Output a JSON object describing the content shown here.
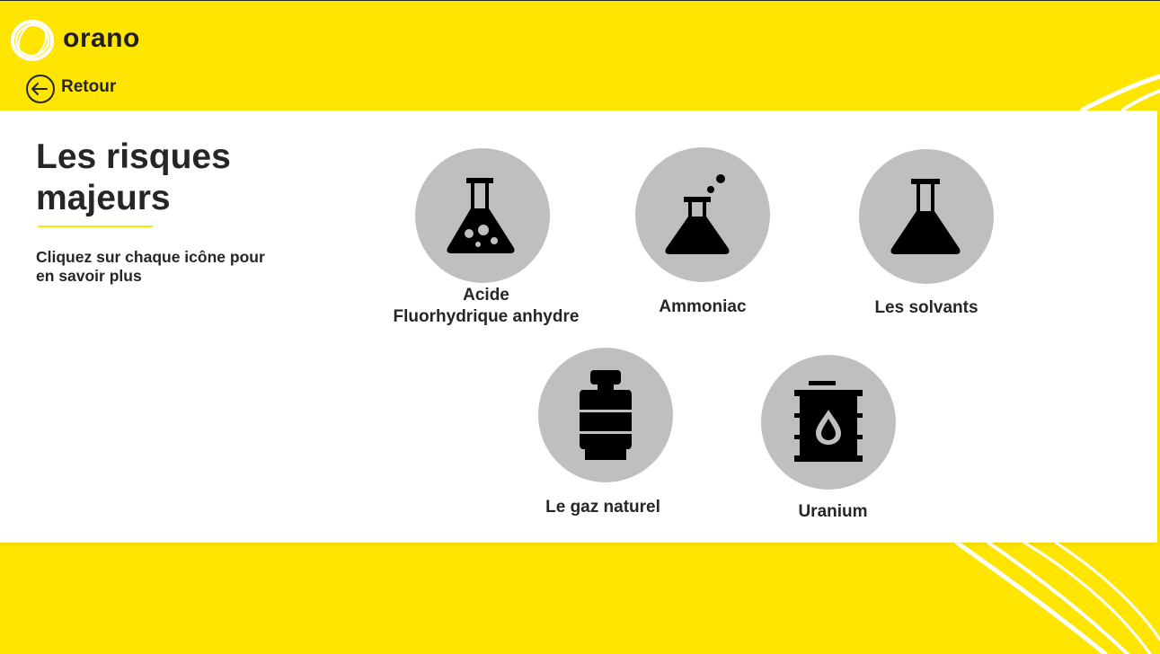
{
  "brand": {
    "name": "orano",
    "accent": "#FFE500",
    "panel": "#FFFFFF",
    "circle": "#BFBFBF",
    "text": "#262626"
  },
  "nav": {
    "back_label": "Retour",
    "back_icon": "arrow-left-circle-icon"
  },
  "page": {
    "title": "Les risques majeurs",
    "instruction": "Cliquez sur chaque icône pour en savoir plus"
  },
  "risks": [
    {
      "label_lines": [
        "Acide",
        "Fluorhydrique anhydre"
      ],
      "icon": "flask-bubbles-icon"
    },
    {
      "label_lines": [
        "Ammoniac"
      ],
      "icon": "flask-vapor-icon"
    },
    {
      "label_lines": [
        "Les solvants"
      ],
      "icon": "flask-icon"
    },
    {
      "label_lines": [
        "Le gaz naturel"
      ],
      "icon": "gas-cylinder-icon"
    },
    {
      "label_lines": [
        "Uranium"
      ],
      "icon": "barrel-drop-icon"
    }
  ]
}
